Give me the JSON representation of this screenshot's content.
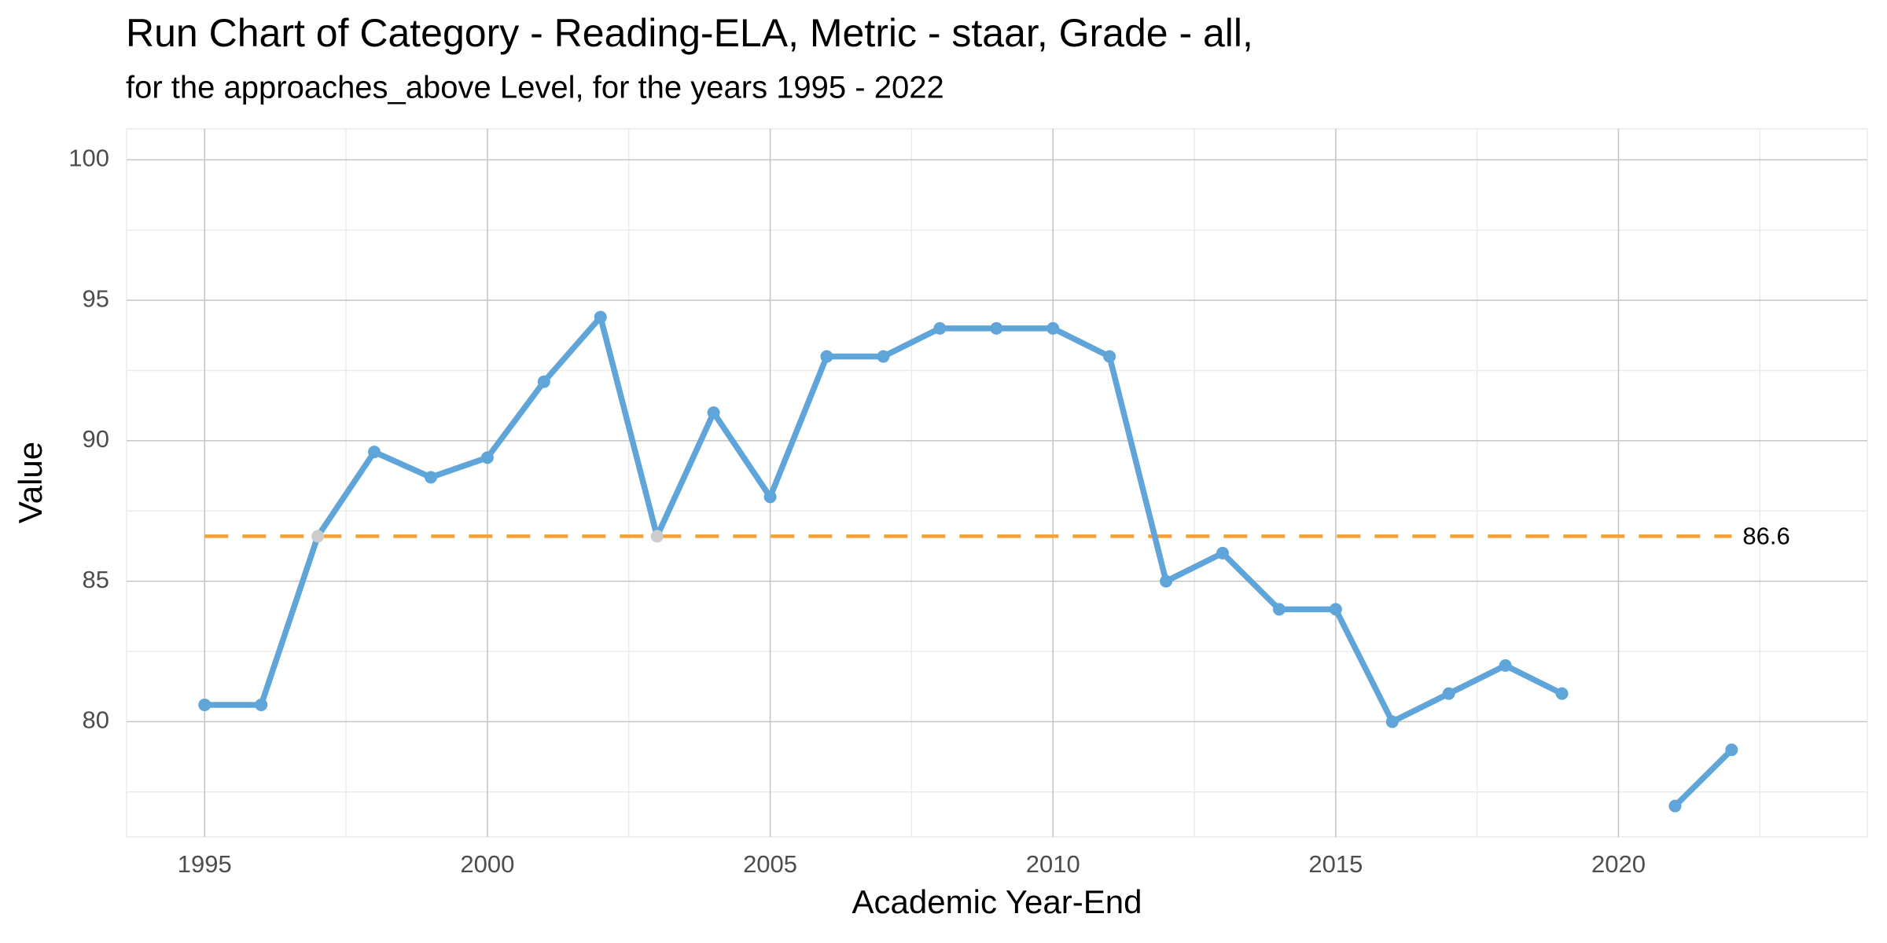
{
  "chart_data": {
    "type": "line",
    "title": "Run Chart of Category - Reading-ELA, Metric - staar, Grade - all,",
    "subtitle": "for the approaches_above Level, for the years 1995 - 2022",
    "x_label": "Academic Year-End",
    "y_label": "Value",
    "x": [
      1995,
      1996,
      1997,
      1998,
      1999,
      2000,
      2001,
      2002,
      2003,
      2004,
      2005,
      2006,
      2007,
      2008,
      2009,
      2010,
      2011,
      2012,
      2013,
      2014,
      2015,
      2016,
      2017,
      2018,
      2019,
      2020,
      2021,
      2022
    ],
    "series": [
      {
        "color": "#5fa5d9",
        "values": [
          80.6,
          80.6,
          86.6,
          89.6,
          88.7,
          89.4,
          92.1,
          94.4,
          86.6,
          91,
          88,
          93,
          93,
          94,
          94,
          94,
          93,
          85,
          86,
          84,
          84,
          80,
          81,
          82,
          81,
          null,
          77,
          79
        ],
        "point_colors": [
          "#5fa5d9",
          "#5fa5d9",
          "#cccccc",
          "#5fa5d9",
          "#5fa5d9",
          "#5fa5d9",
          "#5fa5d9",
          "#5fa5d9",
          "#cccccc",
          "#5fa5d9",
          "#5fa5d9",
          "#5fa5d9",
          "#5fa5d9",
          "#5fa5d9",
          "#5fa5d9",
          "#5fa5d9",
          "#5fa5d9",
          "#5fa5d9",
          "#5fa5d9",
          "#5fa5d9",
          "#5fa5d9",
          "#5fa5d9",
          "#5fa5d9",
          "#5fa5d9",
          "#5fa5d9",
          "#5fa5d9",
          "#5fa5d9",
          "#5fa5d9"
        ]
      }
    ],
    "reference_line": {
      "value": 86.6,
      "color": "#f5a037"
    },
    "xlim": [
      1993.62,
      2024.4
    ],
    "xticks": [
      1995,
      2000,
      2005,
      2010,
      2015,
      2020
    ],
    "ylim": [
      75.9,
      101.1
    ],
    "yticks": [
      80,
      85,
      90,
      95,
      100
    ],
    "grid": true
  }
}
